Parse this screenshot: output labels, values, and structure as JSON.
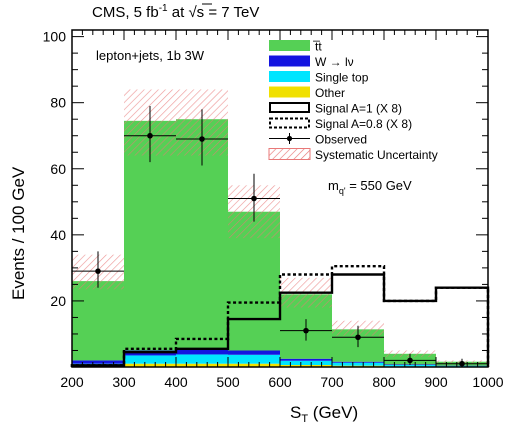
{
  "chart_data": {
    "type": "bar",
    "subtype": "stacked-histogram",
    "title_parts": {
      "main": "CMS, 5 fb",
      "sup": "-1",
      "at": " at ",
      "sqrt": "√s",
      "energy": " = 7 TeV"
    },
    "channel_label": "lepton+jets, 1b 3W",
    "mass_label": {
      "text": "m",
      "sub": "q'",
      "value": " = 550 GeV"
    },
    "xlabel": {
      "main": "S",
      "sub": "T",
      "unit": " (GeV)"
    },
    "ylabel": "Events / 100 GeV",
    "xlim": [
      200,
      1000
    ],
    "ylim": [
      0,
      102
    ],
    "xticks": [
      200,
      300,
      400,
      500,
      600,
      700,
      800,
      900,
      1000
    ],
    "yticks": [
      20,
      40,
      60,
      80,
      100
    ],
    "grid": false,
    "legend_position": "top-right",
    "bin_edges": [
      200,
      300,
      400,
      500,
      600,
      700,
      800,
      900,
      1000
    ],
    "stack": [
      {
        "key": "other",
        "name": "Other",
        "color": "#f0e000",
        "values": [
          0.5,
          1.0,
          1.0,
          1.0,
          0.6,
          0.4,
          0.2,
          0.1
        ]
      },
      {
        "key": "single_top",
        "name": "Single top",
        "color": "#00e5ff",
        "values": [
          0.5,
          2.5,
          2.8,
          2.7,
          1.3,
          0.9,
          0.4,
          0.2
        ]
      },
      {
        "key": "wlnu",
        "name": "W → lν",
        "color": "#1414e0",
        "values": [
          1.0,
          1.5,
          1.5,
          1.3,
          0.6,
          0.3,
          0.2,
          0.1
        ]
      },
      {
        "key": "ttbar",
        "name": "t̅t",
        "color": "#55d055",
        "values": [
          24.0,
          69.5,
          69.7,
          42.0,
          19.5,
          9.8,
          3.2,
          1.2
        ]
      }
    ],
    "syst_band": {
      "name": "Systematic Uncertainty",
      "color": "#e87878",
      "lower": [
        23.5,
        64,
        64,
        39,
        18,
        9.5,
        3,
        1
      ],
      "upper": [
        34,
        84,
        84,
        55,
        27,
        14,
        5,
        2
      ]
    },
    "signal_solid": {
      "name": "Signal A=1 (X 8)",
      "values": [
        0.5,
        4.5,
        5.5,
        14.5,
        22.5,
        28,
        20,
        24
      ]
    },
    "signal_dashed": {
      "name": "Signal A=0.8 (X 8)",
      "values": [
        0.5,
        5.5,
        8.5,
        19.5,
        28,
        30.5,
        20,
        24
      ]
    },
    "observed": {
      "name": "Observed",
      "x": [
        250,
        350,
        450,
        550,
        650,
        750,
        850,
        950
      ],
      "y": [
        29,
        70,
        69,
        51,
        11,
        9,
        2,
        1
      ],
      "err_lo": [
        5,
        8,
        8,
        7,
        3,
        3,
        1.4,
        1
      ],
      "err_hi": [
        6,
        9,
        9,
        7.5,
        3.5,
        3.5,
        2,
        1.5
      ]
    }
  }
}
